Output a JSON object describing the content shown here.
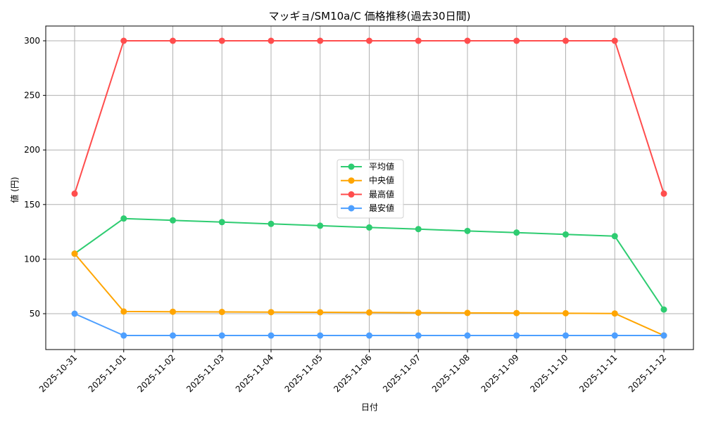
{
  "chart_data": {
    "type": "line",
    "title": "マッギョ/SM10a/C 価格推移(過去30日間)",
    "xlabel": "日付",
    "ylabel": "値 (円)",
    "x": [
      "2025-10-31",
      "2025-11-01",
      "2025-11-02",
      "2025-11-03",
      "2025-11-04",
      "2025-11-05",
      "2025-11-06",
      "2025-11-07",
      "2025-11-08",
      "2025-11-09",
      "2025-11-10",
      "2025-11-11",
      "2025-11-12"
    ],
    "yticks": [
      50,
      100,
      150,
      200,
      250,
      300
    ],
    "ylim": [
      16,
      313
    ],
    "grid": true,
    "legend_position": "center",
    "series": [
      {
        "name": "平均値",
        "color": "#2ecc71",
        "values": [
          105,
          137.2,
          135.5,
          133.9,
          132.3,
          130.6,
          129.0,
          127.5,
          125.8,
          124.3,
          122.6,
          121.0,
          53.8
        ]
      },
      {
        "name": "中央値",
        "color": "#ffa500",
        "values": [
          105,
          52.0,
          51.8,
          51.6,
          51.4,
          51.3,
          51.1,
          50.9,
          50.7,
          50.6,
          50.4,
          50.2,
          30
        ]
      },
      {
        "name": "最高値",
        "color": "#ff4d4d",
        "values": [
          160,
          300,
          300,
          300,
          300,
          300,
          300,
          300,
          300,
          300,
          300,
          300,
          160
        ]
      },
      {
        "name": "最安値",
        "color": "#4d9fff",
        "values": [
          50,
          30,
          30,
          30,
          30,
          30,
          30,
          30,
          30,
          30,
          30,
          30,
          30
        ]
      }
    ]
  }
}
